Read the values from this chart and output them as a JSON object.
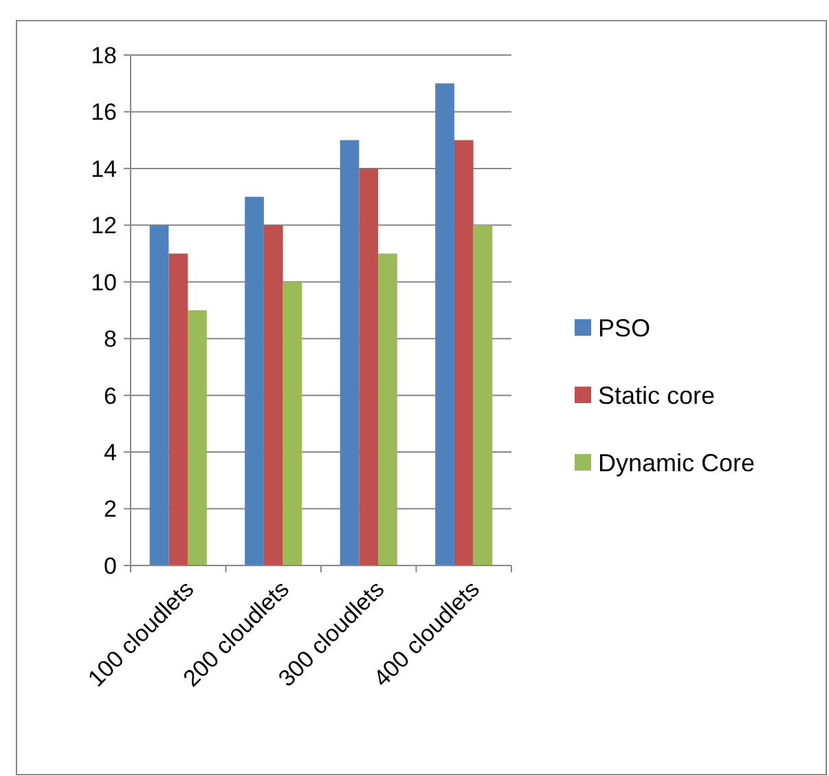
{
  "chart_data": {
    "type": "bar",
    "categories": [
      "100 cloudlets",
      "200 cloudlets",
      "300 cloudlets",
      "400 cloudlets"
    ],
    "series": [
      {
        "name": "PSO",
        "color": "#4f81bd",
        "values": [
          12,
          13,
          15,
          17
        ]
      },
      {
        "name": "Static core",
        "color": "#c0504d",
        "values": [
          11,
          12,
          14,
          15
        ]
      },
      {
        "name": "Dynamic Core",
        "color": "#9bbb59",
        "values": [
          9,
          10,
          11,
          12
        ]
      }
    ],
    "ylim": [
      0,
      18
    ],
    "yticks": [
      0,
      2,
      4,
      6,
      8,
      10,
      12,
      14,
      16,
      18
    ],
    "grid": "y",
    "legend": "right"
  }
}
